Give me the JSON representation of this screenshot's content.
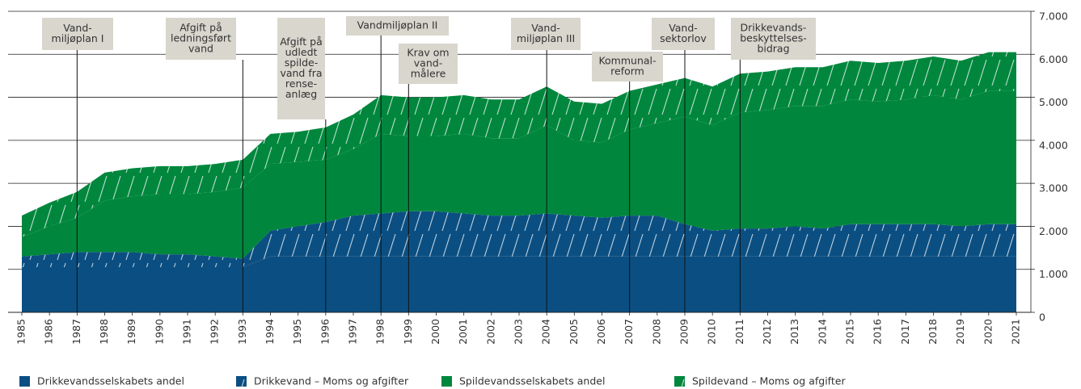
{
  "chart_data": {
    "type": "stacked-area",
    "categories": [
      "1985",
      "1986",
      "1987",
      "1988",
      "1989",
      "1990",
      "1991",
      "1992",
      "1993",
      "1994",
      "1995",
      "1996",
      "1997",
      "1998",
      "1999",
      "2000",
      "2001",
      "2002",
      "2003",
      "2004",
      "2005",
      "2006",
      "2007",
      "2008",
      "2009",
      "2010",
      "2011",
      "2012",
      "2013",
      "2014",
      "2015",
      "2016",
      "2017",
      "2018",
      "2019",
      "2020",
      "2021"
    ],
    "series": [
      {
        "name": "Drikkevandsselskabets andel",
        "color": "#0b4f82",
        "hatched": false,
        "values": [
          1050,
          1050,
          1050,
          1050,
          1050,
          1050,
          1050,
          1050,
          1050,
          1300,
          1300,
          1300,
          1300,
          1300,
          1300,
          1300,
          1300,
          1300,
          1300,
          1300,
          1300,
          1300,
          1300,
          1300,
          1300,
          1300,
          1300,
          1300,
          1300,
          1300,
          1300,
          1300,
          1300,
          1300,
          1300,
          1300,
          1300
        ]
      },
      {
        "name": "Drikkevand – Moms og afgifter",
        "color": "#0b4f82",
        "hatched": true,
        "values": [
          250,
          300,
          350,
          350,
          350,
          300,
          300,
          250,
          200,
          600,
          700,
          800,
          950,
          1000,
          1050,
          1050,
          1000,
          950,
          950,
          1000,
          950,
          900,
          950,
          950,
          750,
          600,
          650,
          650,
          700,
          650,
          750,
          750,
          750,
          750,
          700,
          750,
          750
        ]
      },
      {
        "name": "Spildevandsselskabets andel",
        "color": "#00873d",
        "hatched": false,
        "values": [
          450,
          650,
          800,
          1200,
          1300,
          1400,
          1400,
          1500,
          1650,
          1550,
          1500,
          1450,
          1550,
          1850,
          1750,
          1750,
          1850,
          1800,
          1800,
          2050,
          1750,
          1750,
          2000,
          2150,
          2500,
          2450,
          2700,
          2750,
          2800,
          2850,
          2900,
          2850,
          2900,
          3000,
          2950,
          3100,
          3100
        ]
      },
      {
        "name": "Spildevand – Moms og afgifter",
        "color": "#00873d",
        "hatched": true,
        "values": [
          500,
          550,
          600,
          650,
          650,
          650,
          650,
          650,
          650,
          700,
          700,
          750,
          800,
          900,
          900,
          900,
          900,
          900,
          900,
          900,
          900,
          900,
          900,
          900,
          900,
          900,
          900,
          900,
          900,
          900,
          900,
          900,
          900,
          900,
          900,
          900,
          900
        ]
      }
    ],
    "ylim": [
      0,
      7000
    ],
    "yticks": [
      0,
      {
        "value": 1000,
        "label": "1.000"
      },
      {
        "value": 2000,
        "label": "2.000"
      },
      {
        "value": 3000,
        "label": "3.000"
      },
      {
        "value": 4000,
        "label": "4.000"
      },
      {
        "value": 5000,
        "label": "5.000"
      },
      {
        "value": 6000,
        "label": "6.000"
      },
      {
        "value": 7000,
        "label": "7.000"
      }
    ],
    "grid": true,
    "legend": "bottom",
    "annotations": [
      {
        "x": "1987",
        "lines": [
          "Vand-",
          "miljøplan I"
        ]
      },
      {
        "x": "1993",
        "lines": [
          "Afgift på",
          "ledningsført",
          "vand"
        ]
      },
      {
        "x": "1996",
        "lines": [
          "Afgift på",
          "udledt",
          "spilde-",
          "vand fra",
          "rense-",
          "anlæg"
        ]
      },
      {
        "x": "1998",
        "lines": [
          "Vandmiljøplan II"
        ]
      },
      {
        "x": "1999",
        "lines": [
          "Krav om",
          "vand-",
          "målere"
        ]
      },
      {
        "x": "2004",
        "lines": [
          "Vand-",
          "miljøplan III"
        ]
      },
      {
        "x": "2007",
        "lines": [
          "Kommunal-",
          "reform"
        ]
      },
      {
        "x": "2009",
        "lines": [
          "Vand-",
          "sektorlov"
        ]
      },
      {
        "x": "2011",
        "lines": [
          "Drikkevands-",
          "beskyttelses-",
          "bidrag"
        ]
      }
    ]
  }
}
